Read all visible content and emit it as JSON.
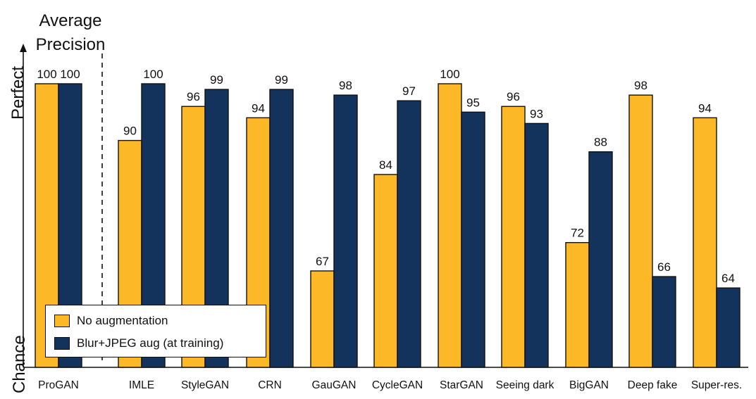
{
  "title": [
    "Average",
    "Precision"
  ],
  "y_top_label": "Perfect",
  "y_bottom_label": "Chance",
  "chart_data": {
    "type": "bar",
    "title": "Average Precision",
    "categories": [
      "ProGAN",
      "IMLE",
      "StyleGAN",
      "CRN",
      "GauGAN",
      "CycleGAN",
      "StarGAN",
      "Seeing dark",
      "BigGAN",
      "Deep fake",
      "Super-res."
    ],
    "series": [
      {
        "name": "No augmentation",
        "values": [
          100,
          90,
          96,
          94,
          67,
          84,
          100,
          96,
          72,
          98,
          94
        ],
        "color": "#FDB827"
      },
      {
        "name": "Blur+JPEG aug (at training)",
        "values": [
          100,
          100,
          99,
          99,
          98,
          97,
          95,
          93,
          88,
          66,
          64
        ],
        "color": "#13325C"
      }
    ],
    "ylim": [
      50,
      100
    ],
    "grid": false,
    "legend_position": "bottom-left"
  }
}
